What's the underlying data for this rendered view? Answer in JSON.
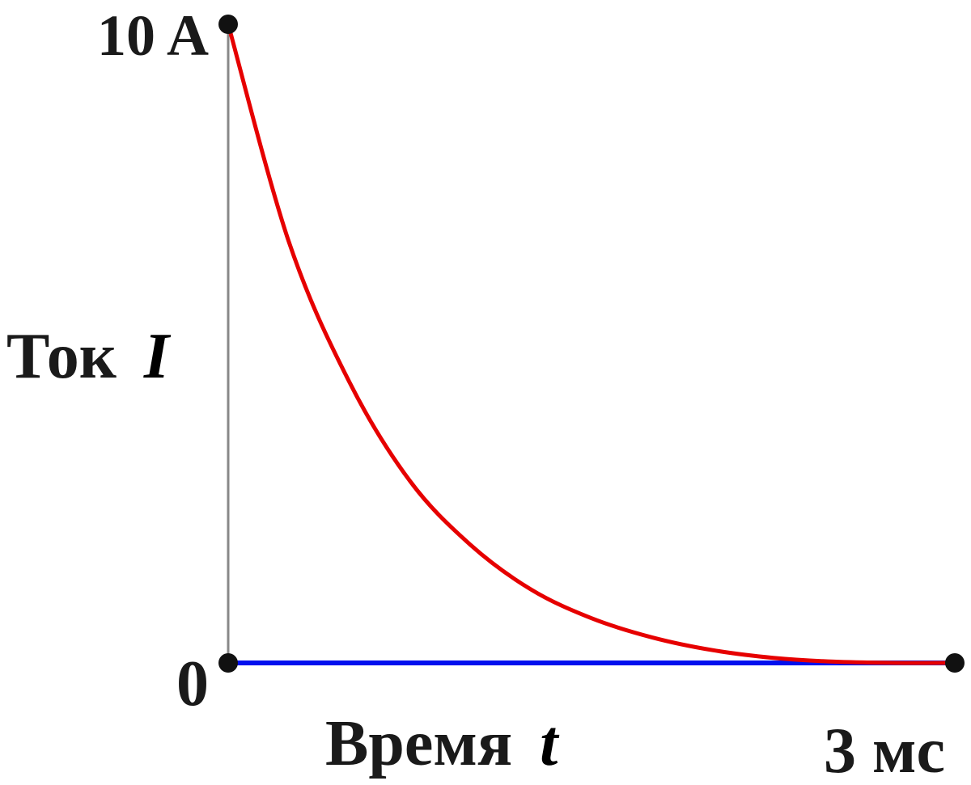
{
  "chart_data": {
    "type": "line",
    "title": "",
    "ylabel": {
      "word": "Ток",
      "symbol": "I"
    },
    "xlabel": {
      "word": "Время",
      "symbol": "t"
    },
    "y_tick_top": "10 A",
    "y_tick_bottom": "0",
    "x_tick_right": "3 мс",
    "xlim": [
      0,
      3
    ],
    "ylim": [
      0,
      10
    ],
    "grid": false,
    "series": [
      {
        "color": "#e60000",
        "x": [
          0,
          0.25,
          0.5,
          0.75,
          1.0,
          1.25,
          1.5,
          1.75,
          2.0,
          2.25,
          2.5,
          2.75,
          3.0
        ],
        "y": [
          10,
          6.6,
          4.4,
          2.85,
          1.85,
          1.15,
          0.7,
          0.4,
          0.2,
          0.08,
          0.02,
          0.0,
          0.0
        ]
      },
      {
        "color": "#0010ee",
        "x": [
          0,
          3
        ],
        "y": [
          0,
          0
        ]
      }
    ],
    "axis_color": "#888888",
    "marker_color": "#111111"
  }
}
